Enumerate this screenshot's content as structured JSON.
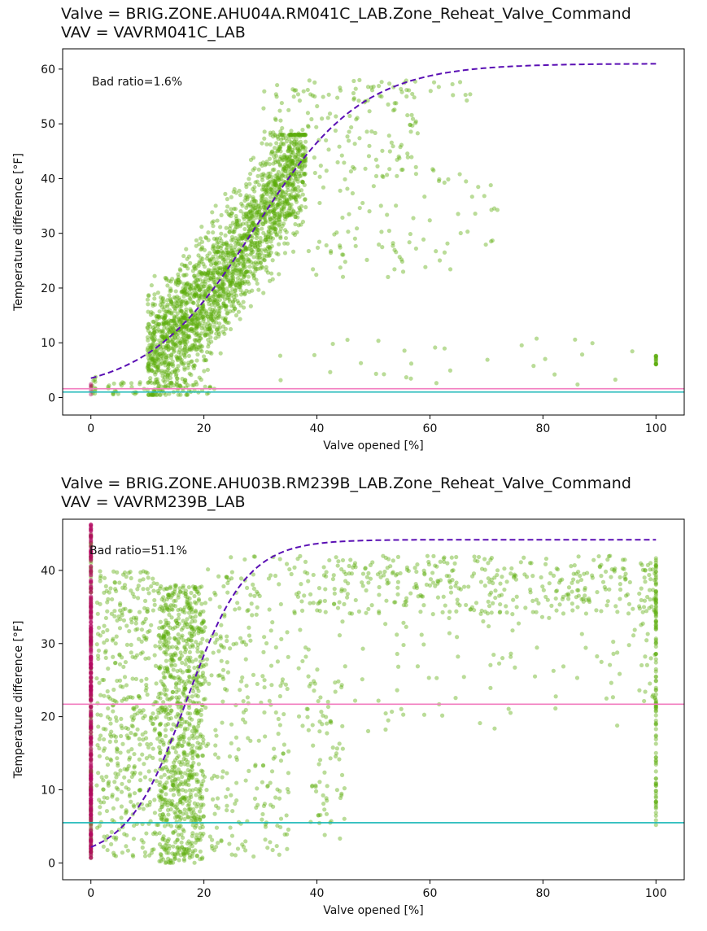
{
  "colors": {
    "good_points": "#5aab0a",
    "bad_points": "#b3075f",
    "fit_line": "#5a0fb4",
    "upper_threshold": "#f27cbf",
    "lower_threshold": "#17b7b7"
  },
  "chart_data": [
    {
      "type": "scatter",
      "title_line1": "Valve = BRIG.ZONE.AHU04A.RM041C_LAB.Zone_Reheat_Valve_Command",
      "title_line2": "VAV = VAVRM041C_LAB",
      "xlabel": "Valve opened [%]",
      "ylabel": "Temperature difference [°F]",
      "annotation": "Bad ratio=1.6%",
      "xlim": [
        -5,
        105
      ],
      "ylim": [
        -3.2,
        63.7
      ],
      "xticks": [
        0,
        20,
        40,
        60,
        80,
        100
      ],
      "yticks": [
        0,
        10,
        20,
        30,
        40,
        50,
        60
      ],
      "grid": false,
      "fit_curve": {
        "type": "logistic",
        "lower": 0.8,
        "upper": 61,
        "midpoint": 29,
        "slope": 0.105,
        "x_range": [
          0,
          100
        ]
      },
      "hlines": [
        {
          "y": 1.6,
          "role": "upper_threshold"
        },
        {
          "y": 1.0,
          "role": "lower_threshold"
        }
      ],
      "clusters": [
        {
          "label": "good",
          "x": [
            0,
            1
          ],
          "y": [
            0.5,
            4
          ],
          "n": 12
        },
        {
          "label": "good",
          "x": [
            10,
            38
          ],
          "y": [
            0.5,
            48
          ],
          "n": 2200,
          "follow_fit": true,
          "spread": 7
        },
        {
          "label": "good",
          "x": [
            3,
            22
          ],
          "y": [
            0.5,
            3
          ],
          "n": 60
        },
        {
          "label": "good",
          "x": [
            30,
            58
          ],
          "y": [
            40,
            58
          ],
          "n": 160
        },
        {
          "label": "good",
          "x": [
            38,
            72
          ],
          "y": [
            22,
            42
          ],
          "n": 90
        },
        {
          "label": "good",
          "x": [
            55,
            68
          ],
          "y": [
            54,
            58
          ],
          "n": 12
        },
        {
          "label": "good",
          "x": [
            32,
            100
          ],
          "y": [
            2,
            11
          ],
          "n": 30
        },
        {
          "label": "good",
          "x": [
            100,
            100
          ],
          "y": [
            6,
            8
          ],
          "n": 15
        }
      ],
      "bad_clusters": [
        {
          "x": [
            0,
            0
          ],
          "y": [
            0.5,
            2.5
          ],
          "n": 5
        }
      ]
    },
    {
      "type": "scatter",
      "title_line1": "Valve = BRIG.ZONE.AHU03B.RM239B_LAB.Zone_Reheat_Valve_Command",
      "title_line2": "VAV = VAVRM239B_LAB",
      "xlabel": "Valve opened [%]",
      "ylabel": "Temperature difference [°F]",
      "annotation": "Bad ratio=51.1%",
      "xlim": [
        -5,
        105
      ],
      "ylim": [
        -2.3,
        47
      ],
      "xticks": [
        0,
        20,
        40,
        60,
        80,
        100
      ],
      "yticks": [
        0,
        10,
        20,
        30,
        40
      ],
      "grid": false,
      "fit_curve": {
        "type": "logistic",
        "lower": 0.5,
        "upper": 44.2,
        "midpoint": 17,
        "slope": 0.19,
        "x_range": [
          0,
          100
        ]
      },
      "hlines": [
        {
          "y": 21.7,
          "role": "upper_threshold"
        },
        {
          "y": 5.5,
          "role": "lower_threshold"
        }
      ],
      "clusters": [
        {
          "label": "good",
          "x": [
            0,
            0
          ],
          "y": [
            0.5,
            45
          ],
          "n": 120
        },
        {
          "label": "good",
          "x": [
            1,
            12
          ],
          "y": [
            0.5,
            40
          ],
          "n": 420
        },
        {
          "label": "good",
          "x": [
            12,
            20
          ],
          "y": [
            0,
            38
          ],
          "n": 900
        },
        {
          "label": "good",
          "x": [
            20,
            35
          ],
          "y": [
            0.5,
            42
          ],
          "n": 260
        },
        {
          "label": "good",
          "x": [
            35,
            100
          ],
          "y": [
            34,
            42
          ],
          "n": 400
        },
        {
          "label": "good",
          "x": [
            35,
            98
          ],
          "y": [
            18,
            34
          ],
          "n": 90
        },
        {
          "label": "good",
          "x": [
            38,
            45
          ],
          "y": [
            3,
            26
          ],
          "n": 70
        },
        {
          "label": "good",
          "x": [
            100,
            100
          ],
          "y": [
            5,
            42.5
          ],
          "n": 120
        },
        {
          "label": "good",
          "x": [
            97,
            100
          ],
          "y": [
            22,
            42
          ],
          "n": 25
        }
      ],
      "bad_clusters": [
        {
          "x": [
            0,
            0
          ],
          "y": [
            0.5,
            46.3
          ],
          "n": 380
        }
      ]
    }
  ]
}
